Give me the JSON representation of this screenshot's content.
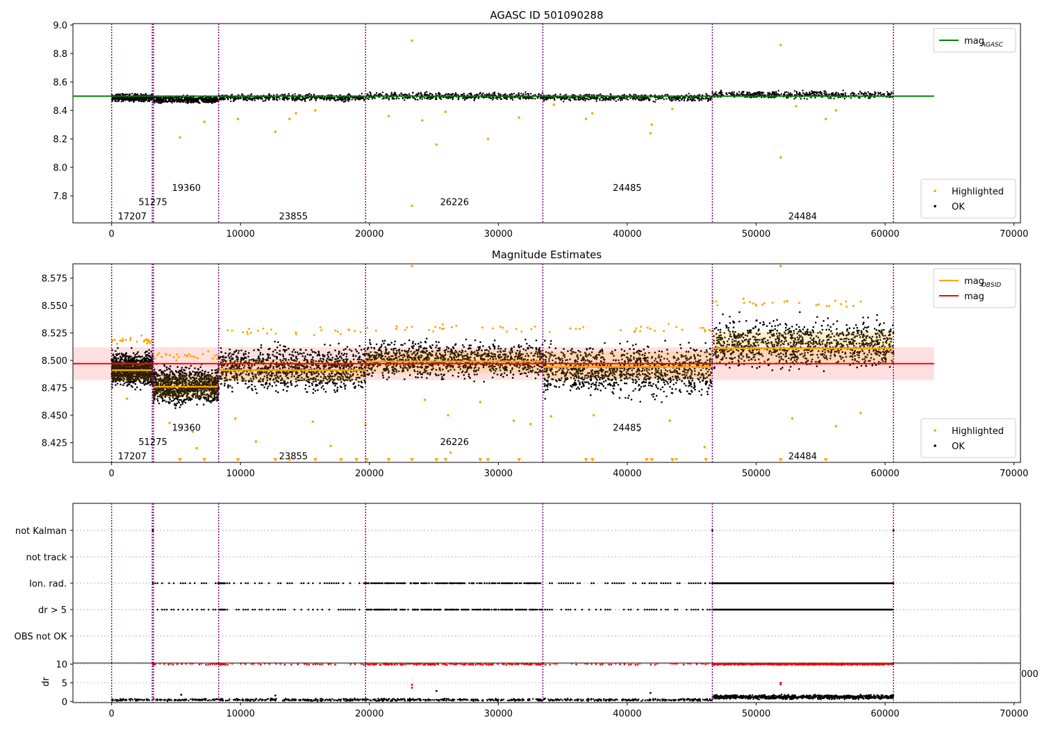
{
  "chart_data": [
    {
      "type": "scatter",
      "title": "AGASC ID 501090288",
      "xlim": [
        -3000,
        70500
      ],
      "ylim": [
        7.61,
        9.01
      ],
      "xticks": [
        0,
        10000,
        20000,
        30000,
        40000,
        50000,
        60000,
        70000
      ],
      "xtick_labels": [
        "0",
        "10000",
        "20000",
        "30000",
        "40000",
        "50000",
        "60000",
        "70000"
      ],
      "yticks": [
        7.8,
        8.0,
        8.2,
        8.4,
        8.6,
        8.8,
        9.0
      ],
      "ytick_labels": [
        "7.8",
        "8.0",
        "8.2",
        "8.4",
        "8.6",
        "8.8",
        "9.0"
      ],
      "reference_line": {
        "y": 8.5,
        "x": [
          -3000,
          63800
        ],
        "color": "#008000"
      },
      "obsid_boundaries": [
        0,
        3150,
        3250,
        8300,
        19700,
        33450,
        46600,
        60650
      ],
      "segments": [
        {
          "x": [
            0,
            3200
          ],
          "level": 8.49
        },
        {
          "x": [
            3200,
            8300
          ],
          "level": 8.475
        },
        {
          "x": [
            8300,
            19700
          ],
          "level": 8.49
        },
        {
          "x": [
            19700,
            33450
          ],
          "level": 8.5
        },
        {
          "x": [
            33450,
            46600
          ],
          "level": 8.49
        },
        {
          "x": [
            46600,
            60650
          ],
          "level": 8.51
        }
      ],
      "obsid_labels": [
        {
          "text": "17207",
          "x": 1600,
          "y": 7.66
        },
        {
          "text": "51275",
          "x": 3200,
          "y": 7.76
        },
        {
          "text": "19360",
          "x": 5800,
          "y": 7.86
        },
        {
          "text": "23855",
          "x": 14100,
          "y": 7.66
        },
        {
          "text": "26226",
          "x": 26600,
          "y": 7.76
        },
        {
          "text": "24485",
          "x": 40000,
          "y": 7.86
        },
        {
          "text": "24484",
          "x": 53600,
          "y": 7.66
        }
      ],
      "highlighted_points": [
        {
          "x": 5300,
          "y": 8.21
        },
        {
          "x": 7200,
          "y": 8.32
        },
        {
          "x": 9800,
          "y": 8.34
        },
        {
          "x": 12700,
          "y": 8.25
        },
        {
          "x": 13800,
          "y": 8.34
        },
        {
          "x": 14300,
          "y": 8.38
        },
        {
          "x": 15800,
          "y": 8.4
        },
        {
          "x": 21500,
          "y": 8.36
        },
        {
          "x": 23300,
          "y": 8.89
        },
        {
          "x": 23300,
          "y": 7.73
        },
        {
          "x": 24100,
          "y": 8.33
        },
        {
          "x": 25200,
          "y": 8.16
        },
        {
          "x": 25900,
          "y": 8.39
        },
        {
          "x": 29200,
          "y": 8.2
        },
        {
          "x": 31600,
          "y": 8.35
        },
        {
          "x": 34300,
          "y": 8.44
        },
        {
          "x": 36800,
          "y": 8.34
        },
        {
          "x": 37300,
          "y": 8.38
        },
        {
          "x": 41800,
          "y": 8.24
        },
        {
          "x": 41900,
          "y": 8.3
        },
        {
          "x": 43500,
          "y": 8.41
        },
        {
          "x": 51900,
          "y": 8.86
        },
        {
          "x": 51900,
          "y": 8.07
        },
        {
          "x": 53100,
          "y": 8.43
        },
        {
          "x": 55400,
          "y": 8.34
        },
        {
          "x": 56200,
          "y": 8.4
        }
      ],
      "legends": [
        {
          "position": "upper-right",
          "entries": [
            {
              "label": "mag",
              "sub": "AGASC",
              "color": "#008000",
              "kind": "line"
            }
          ]
        },
        {
          "position": "lower-right",
          "entries": [
            {
              "label": "Highlighted",
              "color": "#ffa500",
              "kind": "point"
            },
            {
              "label": "OK",
              "color": "#000000",
              "kind": "point"
            }
          ]
        }
      ]
    },
    {
      "type": "scatter",
      "title": "Magnitude Estimates",
      "xlim": [
        -3000,
        70500
      ],
      "ylim": [
        8.407,
        8.588
      ],
      "xticks": [
        0,
        10000,
        20000,
        30000,
        40000,
        50000,
        60000,
        70000
      ],
      "xtick_labels": [
        "0",
        "10000",
        "20000",
        "30000",
        "40000",
        "50000",
        "60000",
        "70000"
      ],
      "yticks": [
        8.425,
        8.45,
        8.475,
        8.5,
        8.525,
        8.55,
        8.575
      ],
      "ytick_labels": [
        "8.425",
        "8.450",
        "8.475",
        "8.500",
        "8.525",
        "8.550",
        "8.575"
      ],
      "mag_line": {
        "y": 8.497,
        "band": [
          8.482,
          8.512
        ],
        "x": [
          -3000,
          63800
        ],
        "color": "#ff0000"
      },
      "obsid_boundaries": [
        0,
        3150,
        3250,
        8300,
        19700,
        33450,
        46600,
        60650
      ],
      "segments": [
        {
          "x": [
            0,
            3200
          ],
          "level": 8.491,
          "band": [
            8.481,
            8.499
          ],
          "scatter": [
            8.472,
            8.512
          ]
        },
        {
          "x": [
            3200,
            8300
          ],
          "level": 8.476,
          "band": [
            8.466,
            8.487
          ],
          "scatter": [
            8.455,
            8.499
          ]
        },
        {
          "x": [
            8300,
            19700
          ],
          "level": 8.491,
          "band": [
            8.481,
            8.501
          ],
          "scatter": [
            8.465,
            8.52
          ]
        },
        {
          "x": [
            19700,
            33450
          ],
          "level": 8.499,
          "band": [
            8.488,
            8.509
          ],
          "scatter": [
            8.478,
            8.523
          ]
        },
        {
          "x": [
            33450,
            46600
          ],
          "level": 8.494,
          "band": [
            8.483,
            8.508
          ],
          "scatter": [
            8.46,
            8.522
          ]
        },
        {
          "x": [
            46600,
            60650
          ],
          "level": 8.511,
          "band": [
            8.497,
            8.526
          ],
          "scatter": [
            8.485,
            8.545
          ]
        }
      ],
      "obsid_labels": [
        {
          "text": "17207",
          "x": 1600,
          "y": 8.413
        },
        {
          "text": "51275",
          "x": 3200,
          "y": 8.426
        },
        {
          "text": "19360",
          "x": 5800,
          "y": 8.439
        },
        {
          "text": "23855",
          "x": 14100,
          "y": 8.413
        },
        {
          "text": "26226",
          "x": 26600,
          "y": 8.426
        },
        {
          "text": "24485",
          "x": 40000,
          "y": 8.439
        },
        {
          "text": "24484",
          "x": 53600,
          "y": 8.413
        }
      ],
      "highlighted_points": [
        {
          "x": 1200,
          "y": 8.465
        },
        {
          "x": 4500,
          "y": 8.443
        },
        {
          "x": 6300,
          "y": 8.435
        },
        {
          "x": 6600,
          "y": 8.42
        },
        {
          "x": 9600,
          "y": 8.447
        },
        {
          "x": 11200,
          "y": 8.426
        },
        {
          "x": 15600,
          "y": 8.444
        },
        {
          "x": 17000,
          "y": 8.422
        },
        {
          "x": 19700,
          "y": 8.441
        },
        {
          "x": 23300,
          "y": 8.586
        },
        {
          "x": 24300,
          "y": 8.464
        },
        {
          "x": 26100,
          "y": 8.45
        },
        {
          "x": 26300,
          "y": 8.416
        },
        {
          "x": 28600,
          "y": 8.462
        },
        {
          "x": 31200,
          "y": 8.445
        },
        {
          "x": 32500,
          "y": 8.442
        },
        {
          "x": 34100,
          "y": 8.449
        },
        {
          "x": 37400,
          "y": 8.45
        },
        {
          "x": 40900,
          "y": 8.436
        },
        {
          "x": 43300,
          "y": 8.445
        },
        {
          "x": 43800,
          "y": 8.41
        },
        {
          "x": 46000,
          "y": 8.421
        },
        {
          "x": 51900,
          "y": 8.586
        },
        {
          "x": 52400,
          "y": 8.554
        },
        {
          "x": 52800,
          "y": 8.447
        },
        {
          "x": 56200,
          "y": 8.44
        },
        {
          "x": 58100,
          "y": 8.452
        }
      ],
      "legends": [
        {
          "position": "upper-right",
          "entries": [
            {
              "label": "mag",
              "sub": "OBSID",
              "color": "#ffa500",
              "kind": "line"
            },
            {
              "label": "mag",
              "color": "#ff0000",
              "kind": "line"
            }
          ]
        },
        {
          "position": "lower-right",
          "entries": [
            {
              "label": "Highlighted",
              "color": "#ffa500",
              "kind": "point"
            },
            {
              "label": "OK",
              "color": "#000000",
              "kind": "point"
            }
          ]
        }
      ]
    },
    {
      "type": "scatter",
      "title": "",
      "xlim": [
        -3000,
        70500
      ],
      "categories": [
        "not Kalman",
        "not track",
        "Ion. rad.",
        "dr > 5",
        "OBS not OK"
      ],
      "obsid_boundaries": [
        0,
        3150,
        3250,
        8300,
        19700,
        33450,
        46600,
        60650
      ],
      "flag_runs": [
        {
          "category": "not Kalman",
          "x": [
            3200,
            46600,
            60650
          ]
        },
        {
          "category": "Ion. rad.",
          "dense_ranges": [
            [
              8300,
              8800
            ],
            [
              46600,
              60650
            ]
          ],
          "sparse_range": [
            3200,
            46600
          ]
        },
        {
          "category": "dr > 5",
          "dense_ranges": [
            [
              8300,
              8800
            ],
            [
              46600,
              60650
            ]
          ],
          "sparse_range": [
            3200,
            46600
          ]
        }
      ]
    },
    {
      "type": "scatter",
      "title": "",
      "ylabel": "dr",
      "xlim": [
        -3000,
        70500
      ],
      "ylim": [
        -0.3,
        10.3
      ],
      "xticks": [
        0,
        10000,
        20000,
        30000,
        40000,
        50000,
        60000,
        70000
      ],
      "xtick_labels": [
        "0",
        "10000",
        "20000",
        "30000",
        "40000",
        "50000",
        "60000",
        "70000"
      ],
      "yticks": [
        0,
        5,
        10
      ],
      "ytick_labels": [
        "0",
        "5",
        "10"
      ],
      "obsid_boundaries": [
        0,
        3150,
        3250,
        8300,
        19700,
        33450,
        46600,
        60650
      ],
      "clipped_at": 10,
      "dr_bands": [
        {
          "x": [
            0,
            46600
          ],
          "low": 0.0,
          "high": 0.9
        },
        {
          "x": [
            46600,
            60650
          ],
          "low": 0.4,
          "high": 2.0
        }
      ],
      "red_points": [
        {
          "x": 23300,
          "y": 3.7
        },
        {
          "x": 23300,
          "y": 4.5
        },
        {
          "x": 51900,
          "y": 4.6
        },
        {
          "x": 51900,
          "y": 5.0
        }
      ],
      "black_outliers": [
        {
          "x": 5400,
          "y": 1.8
        },
        {
          "x": 12700,
          "y": 1.6
        },
        {
          "x": 25200,
          "y": 2.8
        },
        {
          "x": 41800,
          "y": 2.3
        }
      ],
      "x_tick_fragment": "000"
    }
  ]
}
